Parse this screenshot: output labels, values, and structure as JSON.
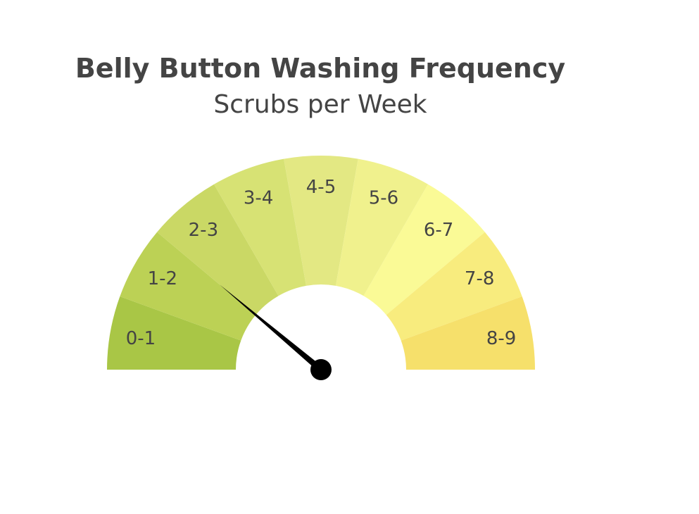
{
  "chart_data": {
    "type": "gauge",
    "title": "Belly Button Washing Frequency",
    "subtitle": "Scrubs per Week",
    "range": [
      0,
      9
    ],
    "categories": [
      "0-1",
      "1-2",
      "2-3",
      "3-4",
      "4-5",
      "5-6",
      "6-7",
      "7-8",
      "8-9"
    ],
    "colors": [
      "#a9c646",
      "#bcd155",
      "#cad865",
      "#d7e274",
      "#e3e883",
      "#f0f18d",
      "#fafa96",
      "#f8ec7e",
      "#f6e06b"
    ],
    "value": 2
  }
}
